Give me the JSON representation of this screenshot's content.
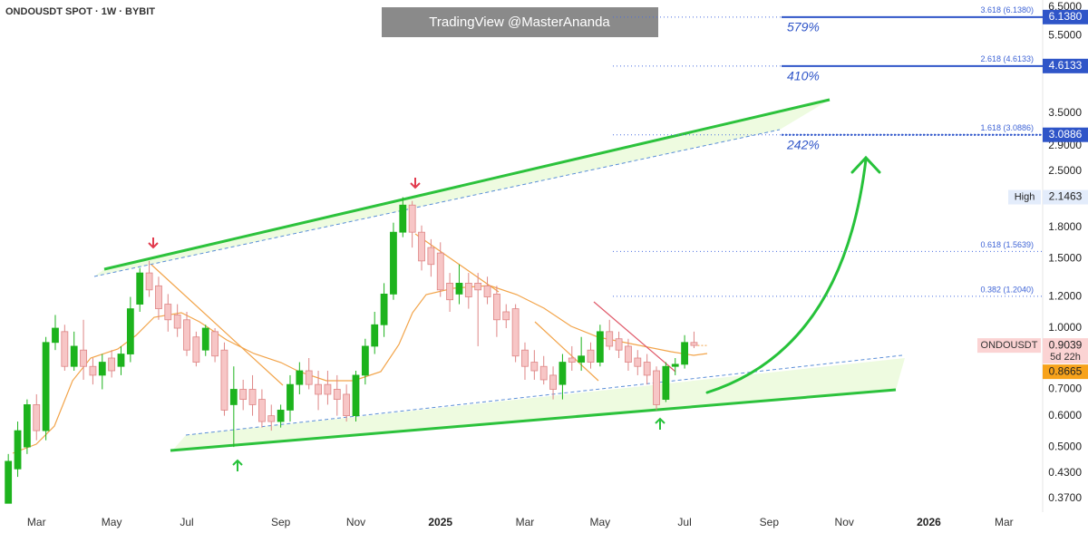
{
  "chart_data": {
    "type": "candlestick",
    "title": "ONDOUSDT SPOT · 1W · BYBIT",
    "watermark": "TradingView @MasterAnanda",
    "log_scale": true,
    "grid": false,
    "up_color": "#1db31d",
    "down_color": "#f7c6c6",
    "down_border": "#de8585",
    "categories": [
      null,
      null,
      null,
      "Mar",
      null,
      null,
      null,
      null,
      null,
      null,
      null,
      "May",
      null,
      null,
      null,
      null,
      null,
      null,
      null,
      "Jul",
      null,
      null,
      null,
      null,
      null,
      null,
      null,
      null,
      null,
      "Sep",
      null,
      null,
      null,
      null,
      null,
      null,
      null,
      "Nov",
      null,
      null,
      null,
      null,
      null,
      null,
      null,
      null,
      "2025",
      null,
      null,
      null,
      null,
      null,
      null,
      null,
      null,
      "Mar",
      null,
      null,
      null,
      null,
      null,
      null,
      null,
      "May",
      null,
      null,
      null,
      null,
      null,
      null,
      null,
      null,
      "Jul",
      null,
      null,
      null,
      null,
      null,
      null,
      null,
      null,
      "Sep",
      null,
      null,
      null,
      null,
      null,
      null,
      null,
      "Nov",
      null,
      null,
      null,
      null,
      null,
      null,
      null,
      null,
      "2026",
      null,
      null,
      null,
      null,
      null,
      null,
      null,
      "Mar",
      null,
      null,
      null
    ],
    "open": [
      0.36,
      0.44,
      0.5,
      0.64,
      0.55,
      0.92,
      0.98,
      0.8,
      0.88,
      0.8,
      0.76,
      0.84,
      0.8,
      0.86,
      1.15,
      1.38,
      1.28,
      1.15,
      1.08,
      1.05,
      0.95,
      0.88,
      0.98,
      0.88,
      0.64,
      0.7,
      0.7,
      0.66,
      0.6,
      0.58,
      0.62,
      0.72,
      0.78,
      0.72,
      0.72,
      0.7,
      0.68,
      0.6,
      0.76,
      0.9,
      1.02,
      1.22,
      1.75,
      2.05,
      1.75,
      1.6,
      1.55,
      1.3,
      1.22,
      1.3,
      1.3,
      1.28,
      1.22,
      1.1,
      1.12,
      0.88,
      0.82,
      0.8,
      0.76,
      0.72,
      0.84,
      0.82,
      0.88,
      0.82,
      0.98,
      0.94,
      0.9,
      0.84,
      0.82,
      0.78,
      0.66,
      0.8,
      0.81,
      0.92,
      null,
      null,
      null,
      null,
      null,
      null,
      null,
      null,
      null,
      null,
      null,
      null,
      null,
      null,
      null,
      null,
      null,
      null,
      null,
      null,
      null,
      null,
      null,
      null,
      null,
      null,
      null,
      null,
      null,
      null,
      null,
      null,
      null,
      null,
      null,
      null
    ],
    "high": [
      0.48,
      0.58,
      0.66,
      0.68,
      0.95,
      1.08,
      1.02,
      0.98,
      1.05,
      0.84,
      0.86,
      0.88,
      0.9,
      1.2,
      1.42,
      1.48,
      1.35,
      1.22,
      1.15,
      1.1,
      0.98,
      1.02,
      1.0,
      0.92,
      0.8,
      0.74,
      0.76,
      0.7,
      0.64,
      0.64,
      0.76,
      0.82,
      0.84,
      0.78,
      0.78,
      0.76,
      0.72,
      0.78,
      0.94,
      1.1,
      1.3,
      1.85,
      2.1463,
      2.1,
      1.82,
      1.68,
      1.65,
      1.38,
      1.45,
      1.38,
      1.38,
      1.35,
      1.28,
      1.15,
      1.15,
      0.92,
      0.88,
      0.85,
      0.8,
      0.86,
      0.9,
      0.95,
      0.92,
      1.02,
      1.05,
      0.98,
      0.94,
      0.88,
      0.86,
      0.8,
      0.82,
      0.84,
      0.96,
      0.98,
      null,
      null,
      null,
      null,
      null,
      null,
      null,
      null,
      null,
      null,
      null,
      null,
      null,
      null,
      null,
      null,
      null,
      null,
      null,
      null,
      null,
      null,
      null,
      null,
      null,
      null,
      null,
      null,
      null,
      null,
      null,
      null,
      null,
      null,
      null,
      null
    ],
    "low": [
      0.36,
      0.42,
      0.48,
      0.52,
      0.52,
      0.88,
      0.78,
      0.78,
      0.74,
      0.72,
      0.7,
      0.75,
      0.76,
      0.82,
      1.1,
      1.2,
      1.05,
      0.98,
      0.95,
      0.85,
      0.8,
      0.85,
      0.82,
      0.6,
      0.5,
      0.62,
      0.6,
      0.56,
      0.55,
      0.56,
      0.58,
      0.68,
      0.7,
      0.62,
      0.64,
      0.6,
      0.58,
      0.58,
      0.72,
      0.86,
      0.95,
      1.18,
      1.7,
      1.6,
      1.4,
      1.35,
      1.2,
      1.1,
      1.15,
      1.12,
      0.9,
      1.15,
      0.95,
      1.0,
      0.82,
      0.74,
      0.74,
      0.72,
      0.66,
      0.66,
      0.78,
      0.78,
      0.79,
      0.8,
      0.88,
      0.84,
      0.78,
      0.76,
      0.72,
      0.62,
      0.65,
      0.76,
      0.79,
      0.89,
      null,
      null,
      null,
      null,
      null,
      null,
      null,
      null,
      null,
      null,
      null,
      null,
      null,
      null,
      null,
      null,
      null,
      null,
      null,
      null,
      null,
      null,
      null,
      null,
      null,
      null,
      null,
      null,
      null,
      null,
      null,
      null,
      null,
      null,
      null,
      null
    ],
    "close": [
      0.46,
      0.55,
      0.64,
      0.55,
      0.92,
      1.0,
      0.8,
      0.9,
      0.8,
      0.76,
      0.82,
      0.78,
      0.86,
      1.12,
      1.38,
      1.25,
      1.12,
      1.05,
      1.0,
      0.88,
      0.82,
      1.0,
      0.85,
      0.62,
      0.7,
      0.66,
      0.64,
      0.58,
      0.58,
      0.62,
      0.72,
      0.78,
      0.72,
      0.68,
      0.68,
      0.66,
      0.6,
      0.76,
      0.9,
      1.02,
      1.22,
      1.75,
      2.05,
      1.75,
      1.48,
      1.45,
      1.25,
      1.18,
      1.3,
      1.2,
      1.25,
      1.2,
      1.05,
      1.05,
      0.85,
      0.8,
      0.78,
      0.74,
      0.7,
      0.82,
      0.82,
      0.85,
      0.82,
      0.98,
      0.9,
      0.88,
      0.82,
      0.8,
      0.76,
      0.64,
      0.8,
      0.81,
      0.92,
      0.9039,
      null,
      null,
      null,
      null,
      null,
      null,
      null,
      null,
      null,
      null,
      null,
      null,
      null,
      null,
      null,
      null,
      null,
      null,
      null,
      null,
      null,
      null,
      null,
      null,
      null,
      null,
      null,
      null,
      null,
      null,
      null,
      null,
      null,
      null,
      null,
      null
    ],
    "ylim": [
      0.333,
      6.78
    ],
    "yticks": [
      {
        "value": 6.5,
        "label": "6.5000"
      },
      {
        "value": 5.5,
        "label": "5.5000"
      },
      {
        "value": 3.5,
        "label": "3.5000"
      },
      {
        "value": 2.9,
        "label": "2.9000"
      },
      {
        "value": 2.5,
        "label": "2.5000"
      },
      {
        "value": 1.8,
        "label": "1.8000"
      },
      {
        "value": 1.5,
        "label": "1.5000"
      },
      {
        "value": 1.2,
        "label": "1.2000"
      },
      {
        "value": 1,
        "label": "1.0000"
      },
      {
        "value": 0.7,
        "label": "0.7000"
      },
      {
        "value": 0.6,
        "label": "0.6000"
      },
      {
        "value": 0.5,
        "label": "0.5000"
      },
      {
        "value": 0.43,
        "label": "0.4300"
      },
      {
        "value": 0.37,
        "label": "0.3700"
      }
    ],
    "levels": [
      {
        "value": 6.138,
        "label": "3.618 (6.1380)",
        "badge": "6.1380",
        "gain": "579%"
      },
      {
        "value": 4.6133,
        "label": "2.618 (4.6133)",
        "badge": "4.6133",
        "gain": "410%"
      },
      {
        "value": 3.0886,
        "label": "1.618 (3.0886)",
        "badge": "3.0886",
        "gain": "242%"
      },
      {
        "value": 1.5639,
        "label": "0.618 (1.5639)"
      },
      {
        "value": 1.204,
        "label": "0.382 (1.2040)"
      }
    ],
    "high_badge": {
      "label": "High",
      "value": 2.1463,
      "value_label": "2.1463"
    },
    "last_price": {
      "name": "ONDOUSDT",
      "value": 0.9039,
      "value_label": "0.9039",
      "countdown": "5d 22h"
    },
    "ma_badge": {
      "value": 0.8665,
      "value_label": "0.8665"
    }
  }
}
